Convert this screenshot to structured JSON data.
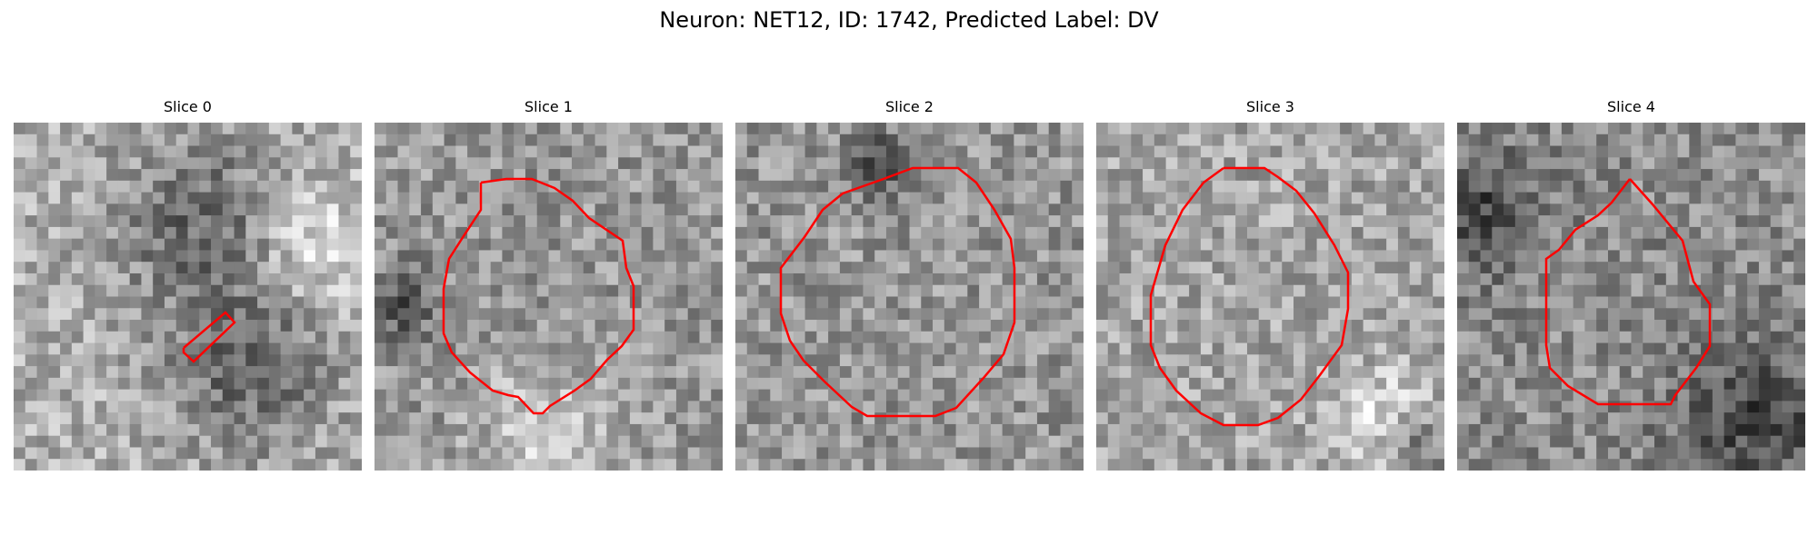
{
  "figure": {
    "title": "Neuron: NET12, ID: 1742, Predicted Label: DV",
    "contour_color": "#ff0000",
    "panels": [
      {
        "title": "Slice 0"
      },
      {
        "title": "Slice 1"
      },
      {
        "title": "Slice 2"
      },
      {
        "title": "Slice 3"
      },
      {
        "title": "Slice 4"
      }
    ]
  }
}
